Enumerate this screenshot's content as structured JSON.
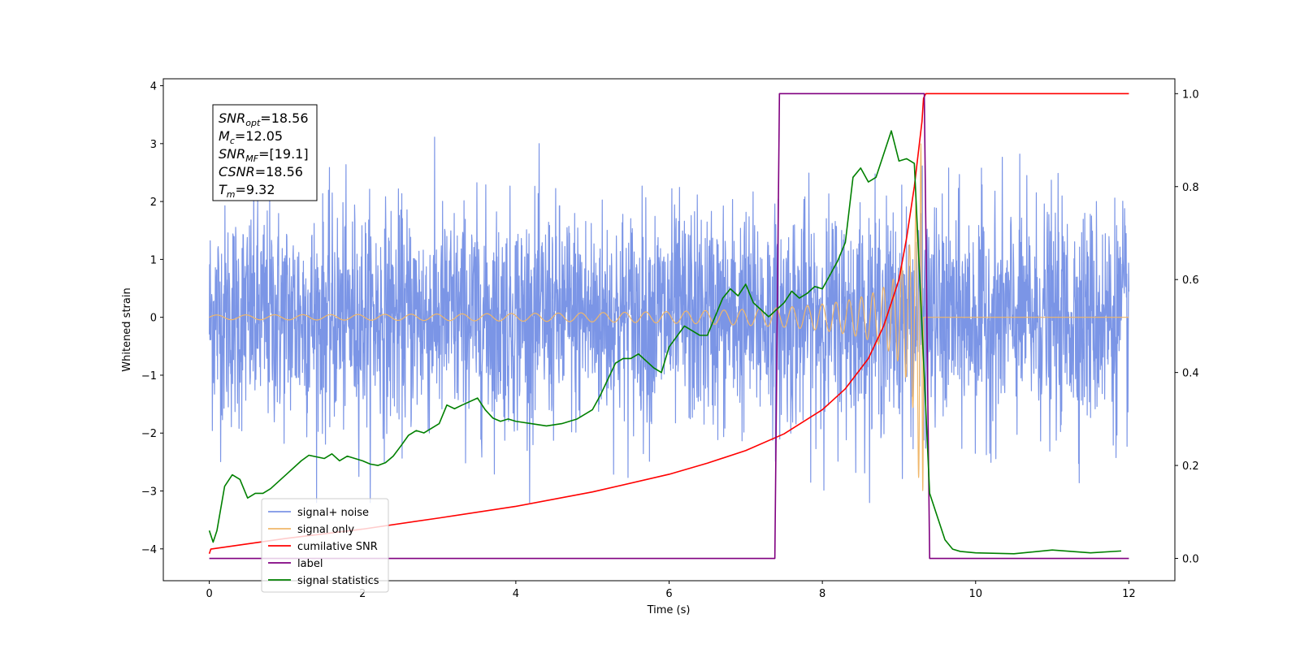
{
  "chart_data": {
    "type": "line",
    "xlabel": "Time (s)",
    "ylabel": "Whitened strain",
    "xlim": [
      -0.6,
      12.6
    ],
    "ylim": [
      -4.55,
      4.12
    ],
    "ylim_right": [
      -0.048,
      1.032
    ],
    "xticks": [
      0,
      2,
      4,
      6,
      8,
      10,
      12
    ],
    "yticks_left": [
      -4,
      -3,
      -2,
      -1,
      0,
      1,
      2,
      3,
      4
    ],
    "yticks_right": [
      0.0,
      0.2,
      0.4,
      0.6,
      0.8,
      1.0
    ],
    "grid": false,
    "legend_position": "lower-left",
    "annotation": [
      {
        "sym": "SNR",
        "sub": "opt",
        "val": "=18.56"
      },
      {
        "sym": "M",
        "sub": "c",
        "val": "=12.05"
      },
      {
        "sym": "SNR",
        "sub": "MF",
        "val": "=[19.1]"
      },
      {
        "sym": "CSNR",
        "sub": "",
        "val": "=18.56"
      },
      {
        "sym": "T",
        "sub": "m",
        "val": "=9.32"
      }
    ],
    "series": [
      {
        "name": "signal+ noise",
        "color": "#7b95e6",
        "axis": "left",
        "kind": "noise",
        "x_range": [
          0,
          12
        ],
        "noise_std": 0.95,
        "peak_range": [
          -3.2,
          3.75
        ]
      },
      {
        "name": "signal only",
        "color": "#f0b76a",
        "axis": "left",
        "kind": "chirp",
        "x_range": [
          0,
          12
        ],
        "coalescence_time": 9.32,
        "amplitude_start": 0.04,
        "amplitude_peak": 3.0
      },
      {
        "name": "cumilative SNR",
        "color": "#ff0000",
        "axis": "right",
        "x": [
          0,
          0.02,
          1,
          2,
          3,
          4,
          5,
          6,
          6.5,
          7,
          7.5,
          8,
          8.3,
          8.6,
          8.8,
          9.0,
          9.1,
          9.2,
          9.3,
          9.32,
          9.35,
          12
        ],
        "y": [
          0.01,
          0.02,
          0.043,
          0.063,
          0.087,
          0.112,
          0.143,
          0.181,
          0.205,
          0.232,
          0.268,
          0.32,
          0.365,
          0.43,
          0.5,
          0.6,
          0.69,
          0.8,
          0.94,
          0.99,
          1.0,
          1.0
        ]
      },
      {
        "name": "label",
        "color": "#800080",
        "axis": "right",
        "x": [
          0,
          7.38,
          7.44,
          9.33,
          9.4,
          12
        ],
        "y": [
          0,
          0,
          1,
          1,
          0,
          0
        ]
      },
      {
        "name": "signal statistics",
        "color": "#008000",
        "axis": "right",
        "x": [
          0,
          0.05,
          0.1,
          0.2,
          0.3,
          0.4,
          0.5,
          0.6,
          0.7,
          0.8,
          1.0,
          1.2,
          1.3,
          1.5,
          1.6,
          1.7,
          1.8,
          1.9,
          2.0,
          2.1,
          2.2,
          2.3,
          2.4,
          2.5,
          2.6,
          2.7,
          2.8,
          2.9,
          3.0,
          3.1,
          3.2,
          3.3,
          3.5,
          3.6,
          3.7,
          3.8,
          3.9,
          4.0,
          4.2,
          4.4,
          4.6,
          4.8,
          5.0,
          5.1,
          5.3,
          5.4,
          5.5,
          5.6,
          5.8,
          5.9,
          6.0,
          6.2,
          6.4,
          6.5,
          6.7,
          6.8,
          6.9,
          7.0,
          7.1,
          7.2,
          7.3,
          7.5,
          7.6,
          7.7,
          7.8,
          7.9,
          8.0,
          8.2,
          8.3,
          8.4,
          8.5,
          8.6,
          8.7,
          8.8,
          8.9,
          9.0,
          9.1,
          9.2,
          9.3,
          9.4,
          9.5,
          9.6,
          9.7,
          9.8,
          10.0,
          10.5,
          11.0,
          11.5,
          11.9
        ],
        "y": [
          0.06,
          0.035,
          0.06,
          0.155,
          0.18,
          0.17,
          0.13,
          0.14,
          0.14,
          0.15,
          0.18,
          0.21,
          0.222,
          0.215,
          0.225,
          0.21,
          0.22,
          0.215,
          0.21,
          0.203,
          0.2,
          0.206,
          0.22,
          0.242,
          0.265,
          0.275,
          0.27,
          0.28,
          0.29,
          0.33,
          0.322,
          0.33,
          0.345,
          0.32,
          0.302,
          0.295,
          0.3,
          0.295,
          0.29,
          0.285,
          0.29,
          0.3,
          0.32,
          0.35,
          0.42,
          0.43,
          0.43,
          0.44,
          0.41,
          0.4,
          0.455,
          0.5,
          0.48,
          0.48,
          0.56,
          0.58,
          0.565,
          0.59,
          0.55,
          0.535,
          0.52,
          0.55,
          0.575,
          0.56,
          0.57,
          0.585,
          0.58,
          0.64,
          0.68,
          0.82,
          0.84,
          0.81,
          0.82,
          0.87,
          0.92,
          0.855,
          0.86,
          0.85,
          0.5,
          0.14,
          0.09,
          0.04,
          0.02,
          0.015,
          0.012,
          0.01,
          0.018,
          0.012,
          0.016
        ]
      }
    ]
  }
}
